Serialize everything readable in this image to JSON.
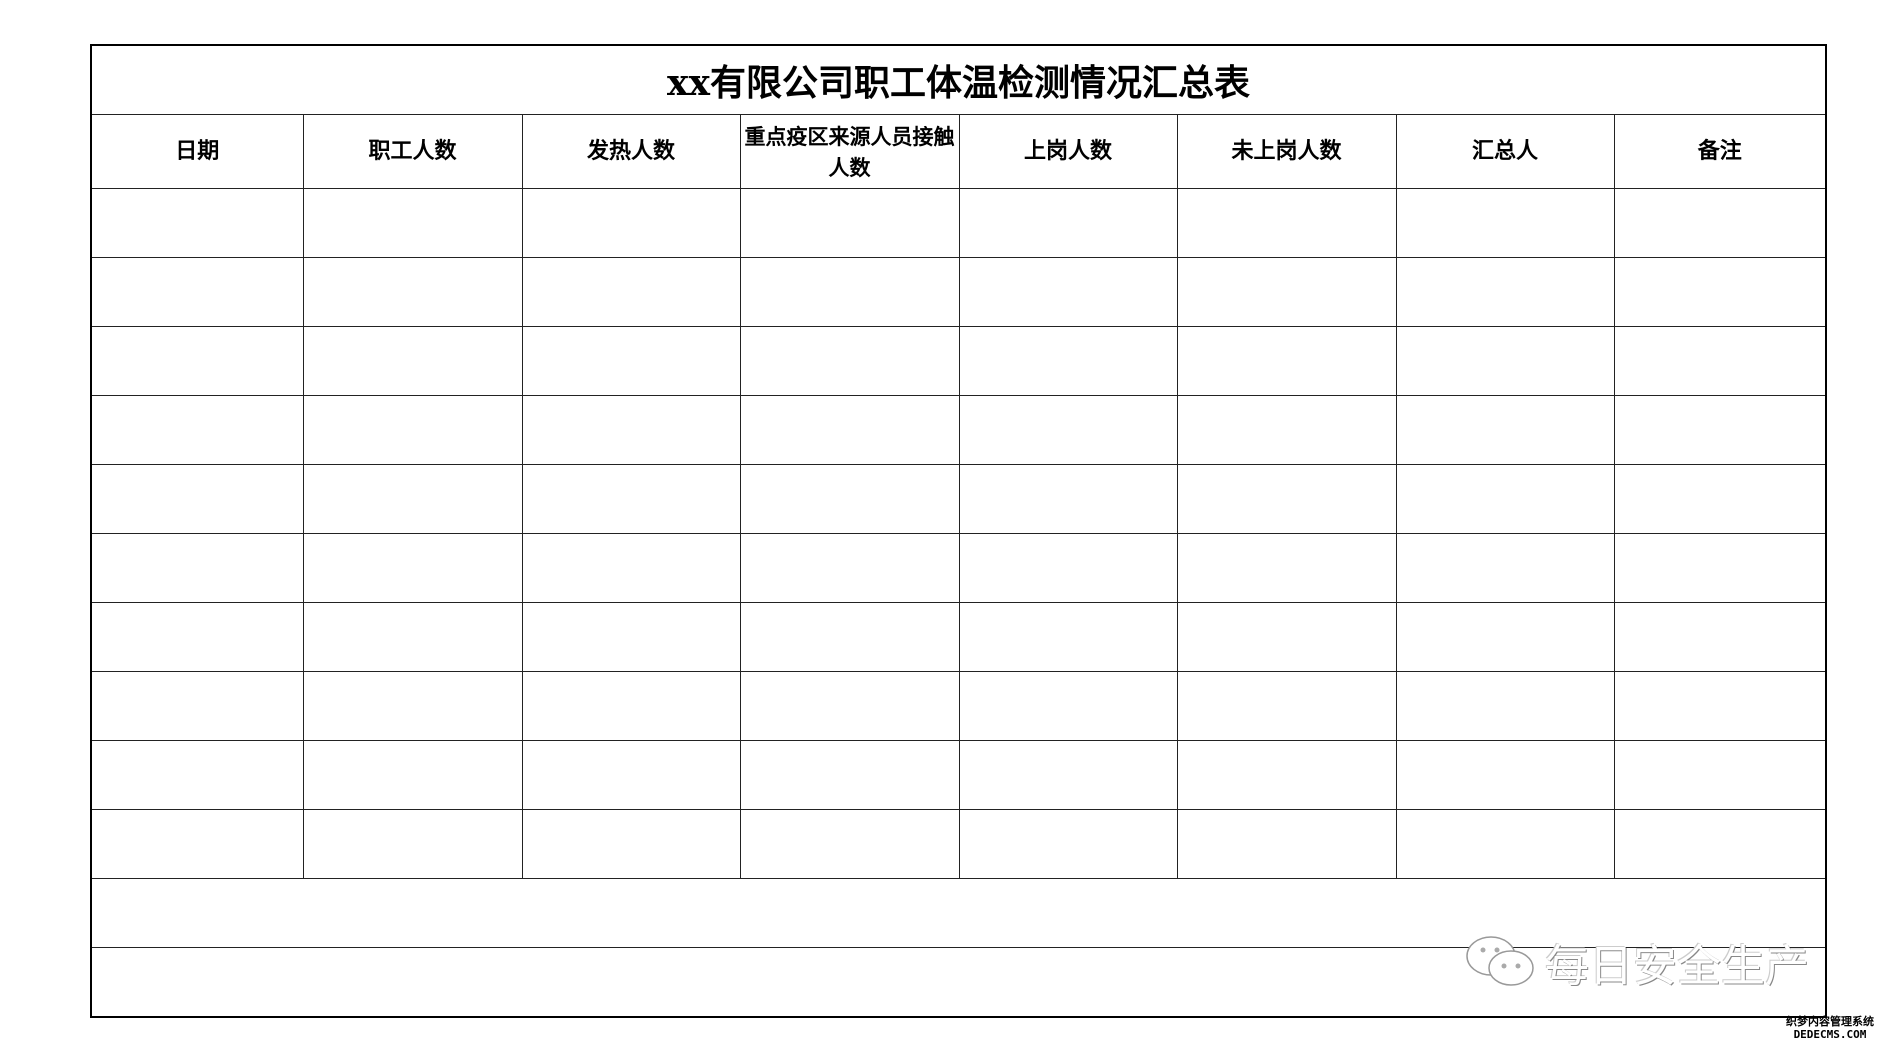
{
  "title": "xx有限公司职工体温检测情况汇总表",
  "columns": [
    "日期",
    "职工人数",
    "发热人数",
    "重点疫区来源人员接触人数",
    "上岗人数",
    "未上岗人数",
    "汇总人",
    "备注"
  ],
  "rows": [
    [
      "",
      "",
      "",
      "",
      "",
      "",
      "",
      ""
    ],
    [
      "",
      "",
      "",
      "",
      "",
      "",
      "",
      ""
    ],
    [
      "",
      "",
      "",
      "",
      "",
      "",
      "",
      ""
    ],
    [
      "",
      "",
      "",
      "",
      "",
      "",
      "",
      ""
    ],
    [
      "",
      "",
      "",
      "",
      "",
      "",
      "",
      ""
    ],
    [
      "",
      "",
      "",
      "",
      "",
      "",
      "",
      ""
    ],
    [
      "",
      "",
      "",
      "",
      "",
      "",
      "",
      ""
    ],
    [
      "",
      "",
      "",
      "",
      "",
      "",
      "",
      ""
    ],
    [
      "",
      "",
      "",
      "",
      "",
      "",
      "",
      ""
    ],
    [
      "",
      "",
      "",
      "",
      "",
      "",
      "",
      ""
    ]
  ],
  "watermark": {
    "icon": "wechat-icon",
    "text": "每日安全生产"
  },
  "corner_logo": {
    "line1": "织梦内容管理系统",
    "line2": "DEDECMS.COM"
  }
}
